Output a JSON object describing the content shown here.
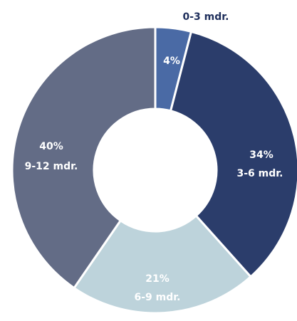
{
  "chart_data": {
    "type": "pie",
    "variant": "donut",
    "title": "",
    "slices": [
      {
        "percent_label": "4%",
        "name": "0-3 mdr.",
        "value": 4,
        "color": "#4a6aa5",
        "text_color": "#ffffff",
        "name_color": "#1f2f5c"
      },
      {
        "percent_label": "34%",
        "name": "3-6 mdr.",
        "value": 34,
        "color": "#2b3d6b",
        "text_color": "#ffffff"
      },
      {
        "percent_label": "21%",
        "name": "6-9 mdr.",
        "value": 21,
        "color": "#bdd3db",
        "text_color": "#ffffff"
      },
      {
        "percent_label": "40%",
        "name": "9-12 mdr.",
        "value": 40,
        "color": "#636c86",
        "text_color": "#ffffff"
      }
    ]
  }
}
